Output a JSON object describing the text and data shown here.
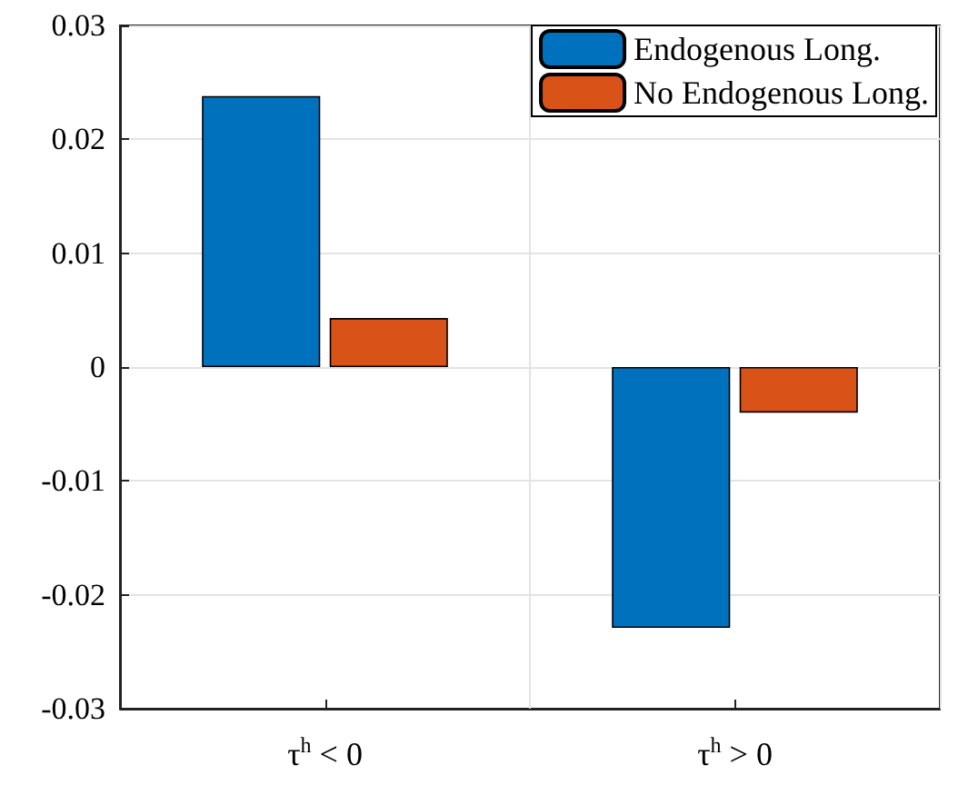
{
  "chart_data": {
    "type": "bar",
    "categories": [
      "τ$^{h}$ < 0",
      "τ$^{h}$ > 0"
    ],
    "series": [
      {
        "name": "Endogenous Long.",
        "color": "#0072bd",
        "values": [
          0.0238,
          -0.0229
        ]
      },
      {
        "name": "No Endogenous Long.",
        "color": "#d95319",
        "values": [
          0.0043,
          -0.004
        ]
      }
    ],
    "ylim": [
      -0.03,
      0.03
    ],
    "yticks": [
      -0.03,
      -0.02,
      -0.01,
      0,
      0.01,
      0.02,
      0.03
    ],
    "grid": true,
    "legend": "top right"
  }
}
